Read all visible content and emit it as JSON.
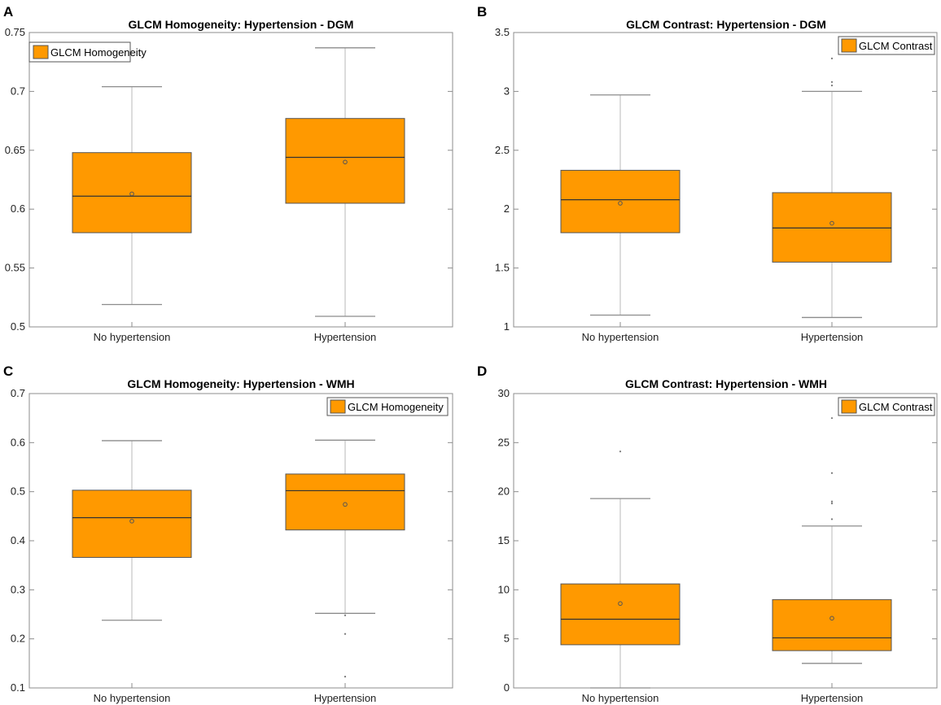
{
  "colors": {
    "box_fill": "#FF9900",
    "box_edge": "#555555",
    "median": "#333333",
    "whisker": "#c8c8c8",
    "cap": "#8c8c8c",
    "frame": "#8c8c8c",
    "mean_marker": "#555555"
  },
  "chart_data": [
    {
      "panel": "A",
      "type": "box",
      "title": "GLCM Homogeneity: Hypertension - DGM",
      "legend": "GLCM Homogeneity",
      "legend_position": "top-left",
      "ylim": [
        0.5,
        0.75
      ],
      "yticks": [
        "0.5",
        "0.55",
        "0.6",
        "0.65",
        "0.7",
        "0.75"
      ],
      "categories": [
        "No hypertension",
        "Hypertension"
      ],
      "boxes": [
        {
          "whisker_low": 0.519,
          "q1": 0.58,
          "median": 0.611,
          "q3": 0.648,
          "whisker_high": 0.704,
          "mean": 0.613,
          "outliers": []
        },
        {
          "whisker_low": 0.509,
          "q1": 0.605,
          "median": 0.644,
          "q3": 0.677,
          "whisker_high": 0.737,
          "mean": 0.64,
          "outliers": []
        }
      ]
    },
    {
      "panel": "B",
      "type": "box",
      "title": "GLCM Contrast: Hypertension - DGM",
      "legend": "GLCM Contrast",
      "legend_position": "top-right",
      "ylim": [
        1,
        3.5
      ],
      "yticks": [
        "1",
        "1.5",
        "2",
        "2.5",
        "3",
        "3.5"
      ],
      "categories": [
        "No hypertension",
        "Hypertension"
      ],
      "boxes": [
        {
          "whisker_low": 1.1,
          "q1": 1.8,
          "median": 2.08,
          "q3": 2.33,
          "whisker_high": 2.97,
          "mean": 2.05,
          "outliers": []
        },
        {
          "whisker_low": 1.08,
          "q1": 1.55,
          "median": 1.84,
          "q3": 2.14,
          "whisker_high": 3.0,
          "mean": 1.88,
          "outliers": [
            3.05,
            3.08,
            3.28
          ]
        }
      ]
    },
    {
      "panel": "C",
      "type": "box",
      "title": "GLCM Homogeneity: Hypertension - WMH",
      "legend": "GLCM Homogeneity",
      "legend_position": "top-right",
      "ylim": [
        0.1,
        0.7
      ],
      "yticks": [
        "0.1",
        "0.2",
        "0.3",
        "0.4",
        "0.5",
        "0.6",
        "0.7"
      ],
      "categories": [
        "No hypertension",
        "Hypertension"
      ],
      "boxes": [
        {
          "whisker_low": 0.238,
          "q1": 0.366,
          "median": 0.447,
          "q3": 0.503,
          "whisker_high": 0.604,
          "mean": 0.44,
          "outliers": []
        },
        {
          "whisker_low": 0.252,
          "q1": 0.422,
          "median": 0.502,
          "q3": 0.536,
          "whisker_high": 0.605,
          "mean": 0.474,
          "outliers": [
            0.248,
            0.21,
            0.123
          ]
        }
      ]
    },
    {
      "panel": "D",
      "type": "box",
      "title": "GLCM Contrast: Hypertension - WMH",
      "legend": "GLCM Contrast",
      "legend_position": "top-right",
      "ylim": [
        0,
        30
      ],
      "yticks": [
        "0",
        "5",
        "10",
        "15",
        "20",
        "25",
        "30"
      ],
      "categories": [
        "No hypertension",
        "Hypertension"
      ],
      "boxes": [
        {
          "whisker_low": 0,
          "q1": 4.4,
          "median": 7.0,
          "q3": 10.6,
          "whisker_high": 19.3,
          "mean": 8.6,
          "outliers": [
            24.1
          ]
        },
        {
          "whisker_low": 2.5,
          "q1": 3.8,
          "median": 5.1,
          "q3": 9.0,
          "whisker_high": 16.5,
          "mean": 7.1,
          "outliers": [
            17.2,
            18.8,
            19.0,
            21.9,
            27.5
          ]
        }
      ]
    }
  ]
}
